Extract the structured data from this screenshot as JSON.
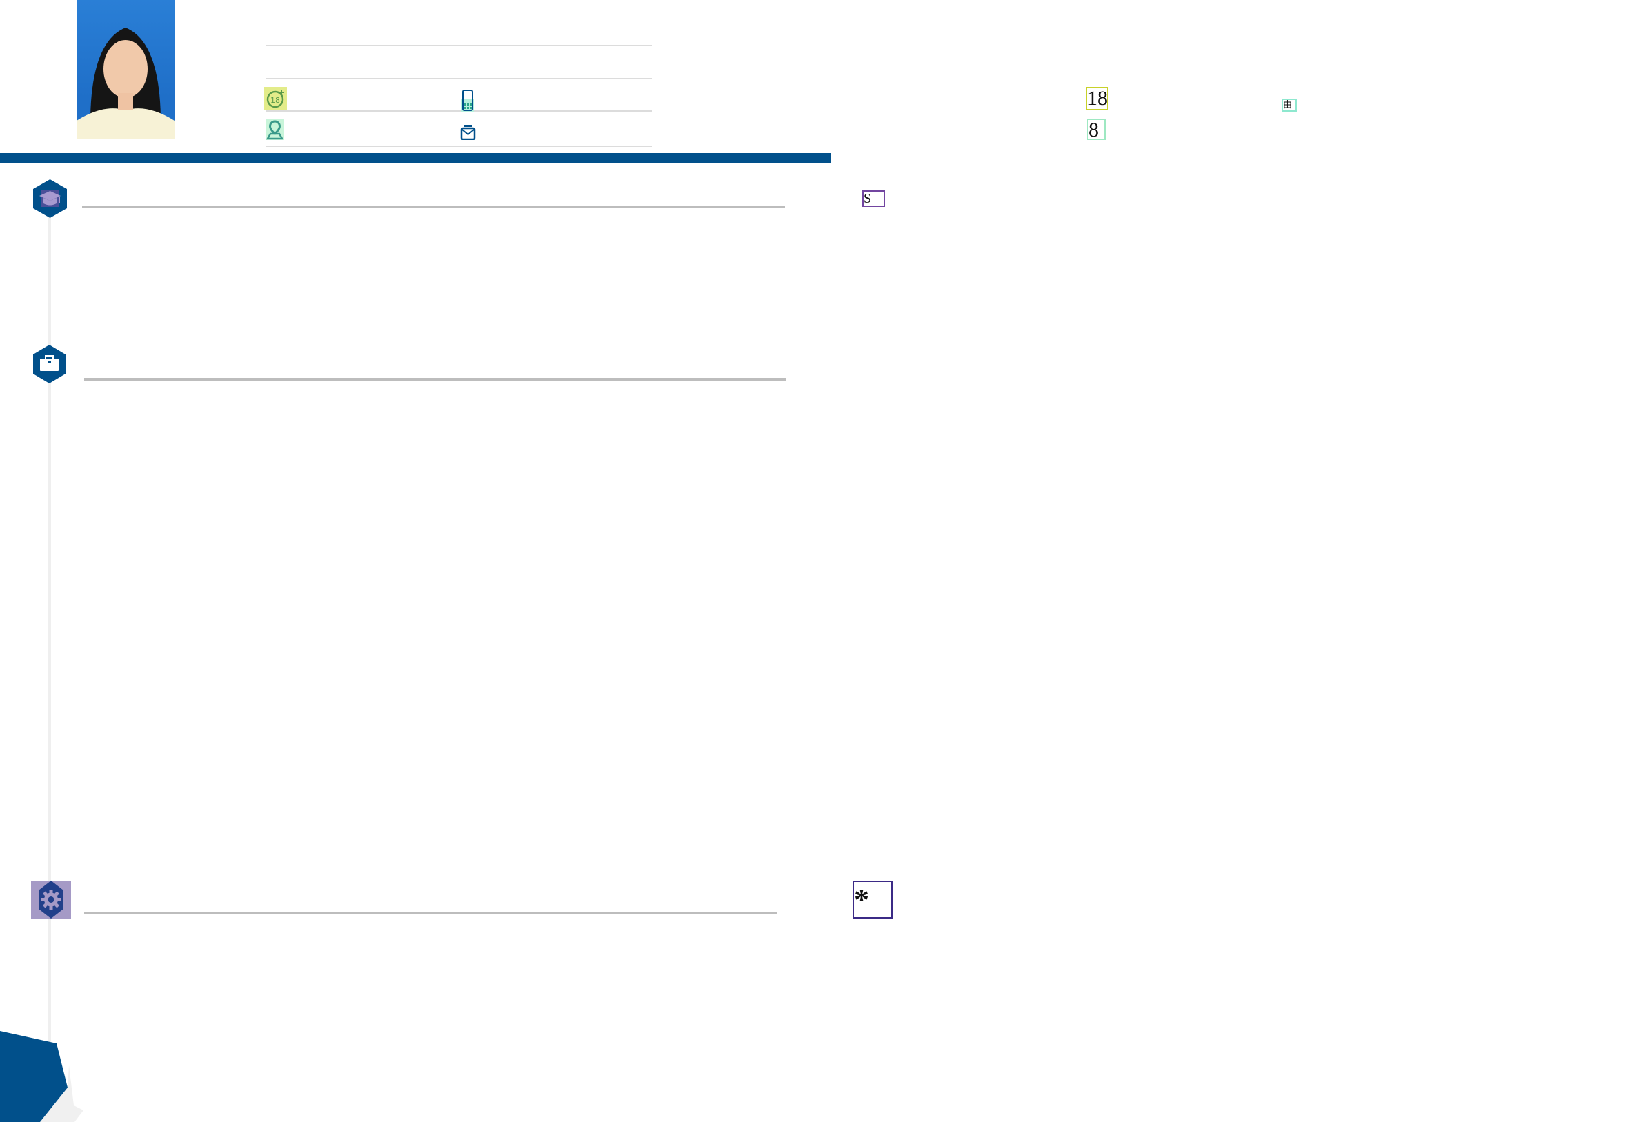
{
  "header": {
    "photo_alt": "portrait photo",
    "contact_icons": [
      "age-18-icon",
      "mobile-phone-icon",
      "location-pin-icon",
      "mail-icon"
    ],
    "age_icon_text": "18"
  },
  "sections": [
    {
      "icon": "graduation-cap-icon"
    },
    {
      "icon": "briefcase-icon"
    },
    {
      "icon": "gear-icon"
    }
  ],
  "floating_labels": {
    "age_box": "18",
    "eight_box": "8",
    "glyph_box": "由",
    "s_box": "S",
    "asterisk_box": "*"
  },
  "colors": {
    "primary": "#01508b",
    "divider": "#bdbdbd",
    "age_icon_bg": "#e3ec8a",
    "map_icon_bg": "#c9f5da",
    "gear_bg": "#a59ac6"
  }
}
